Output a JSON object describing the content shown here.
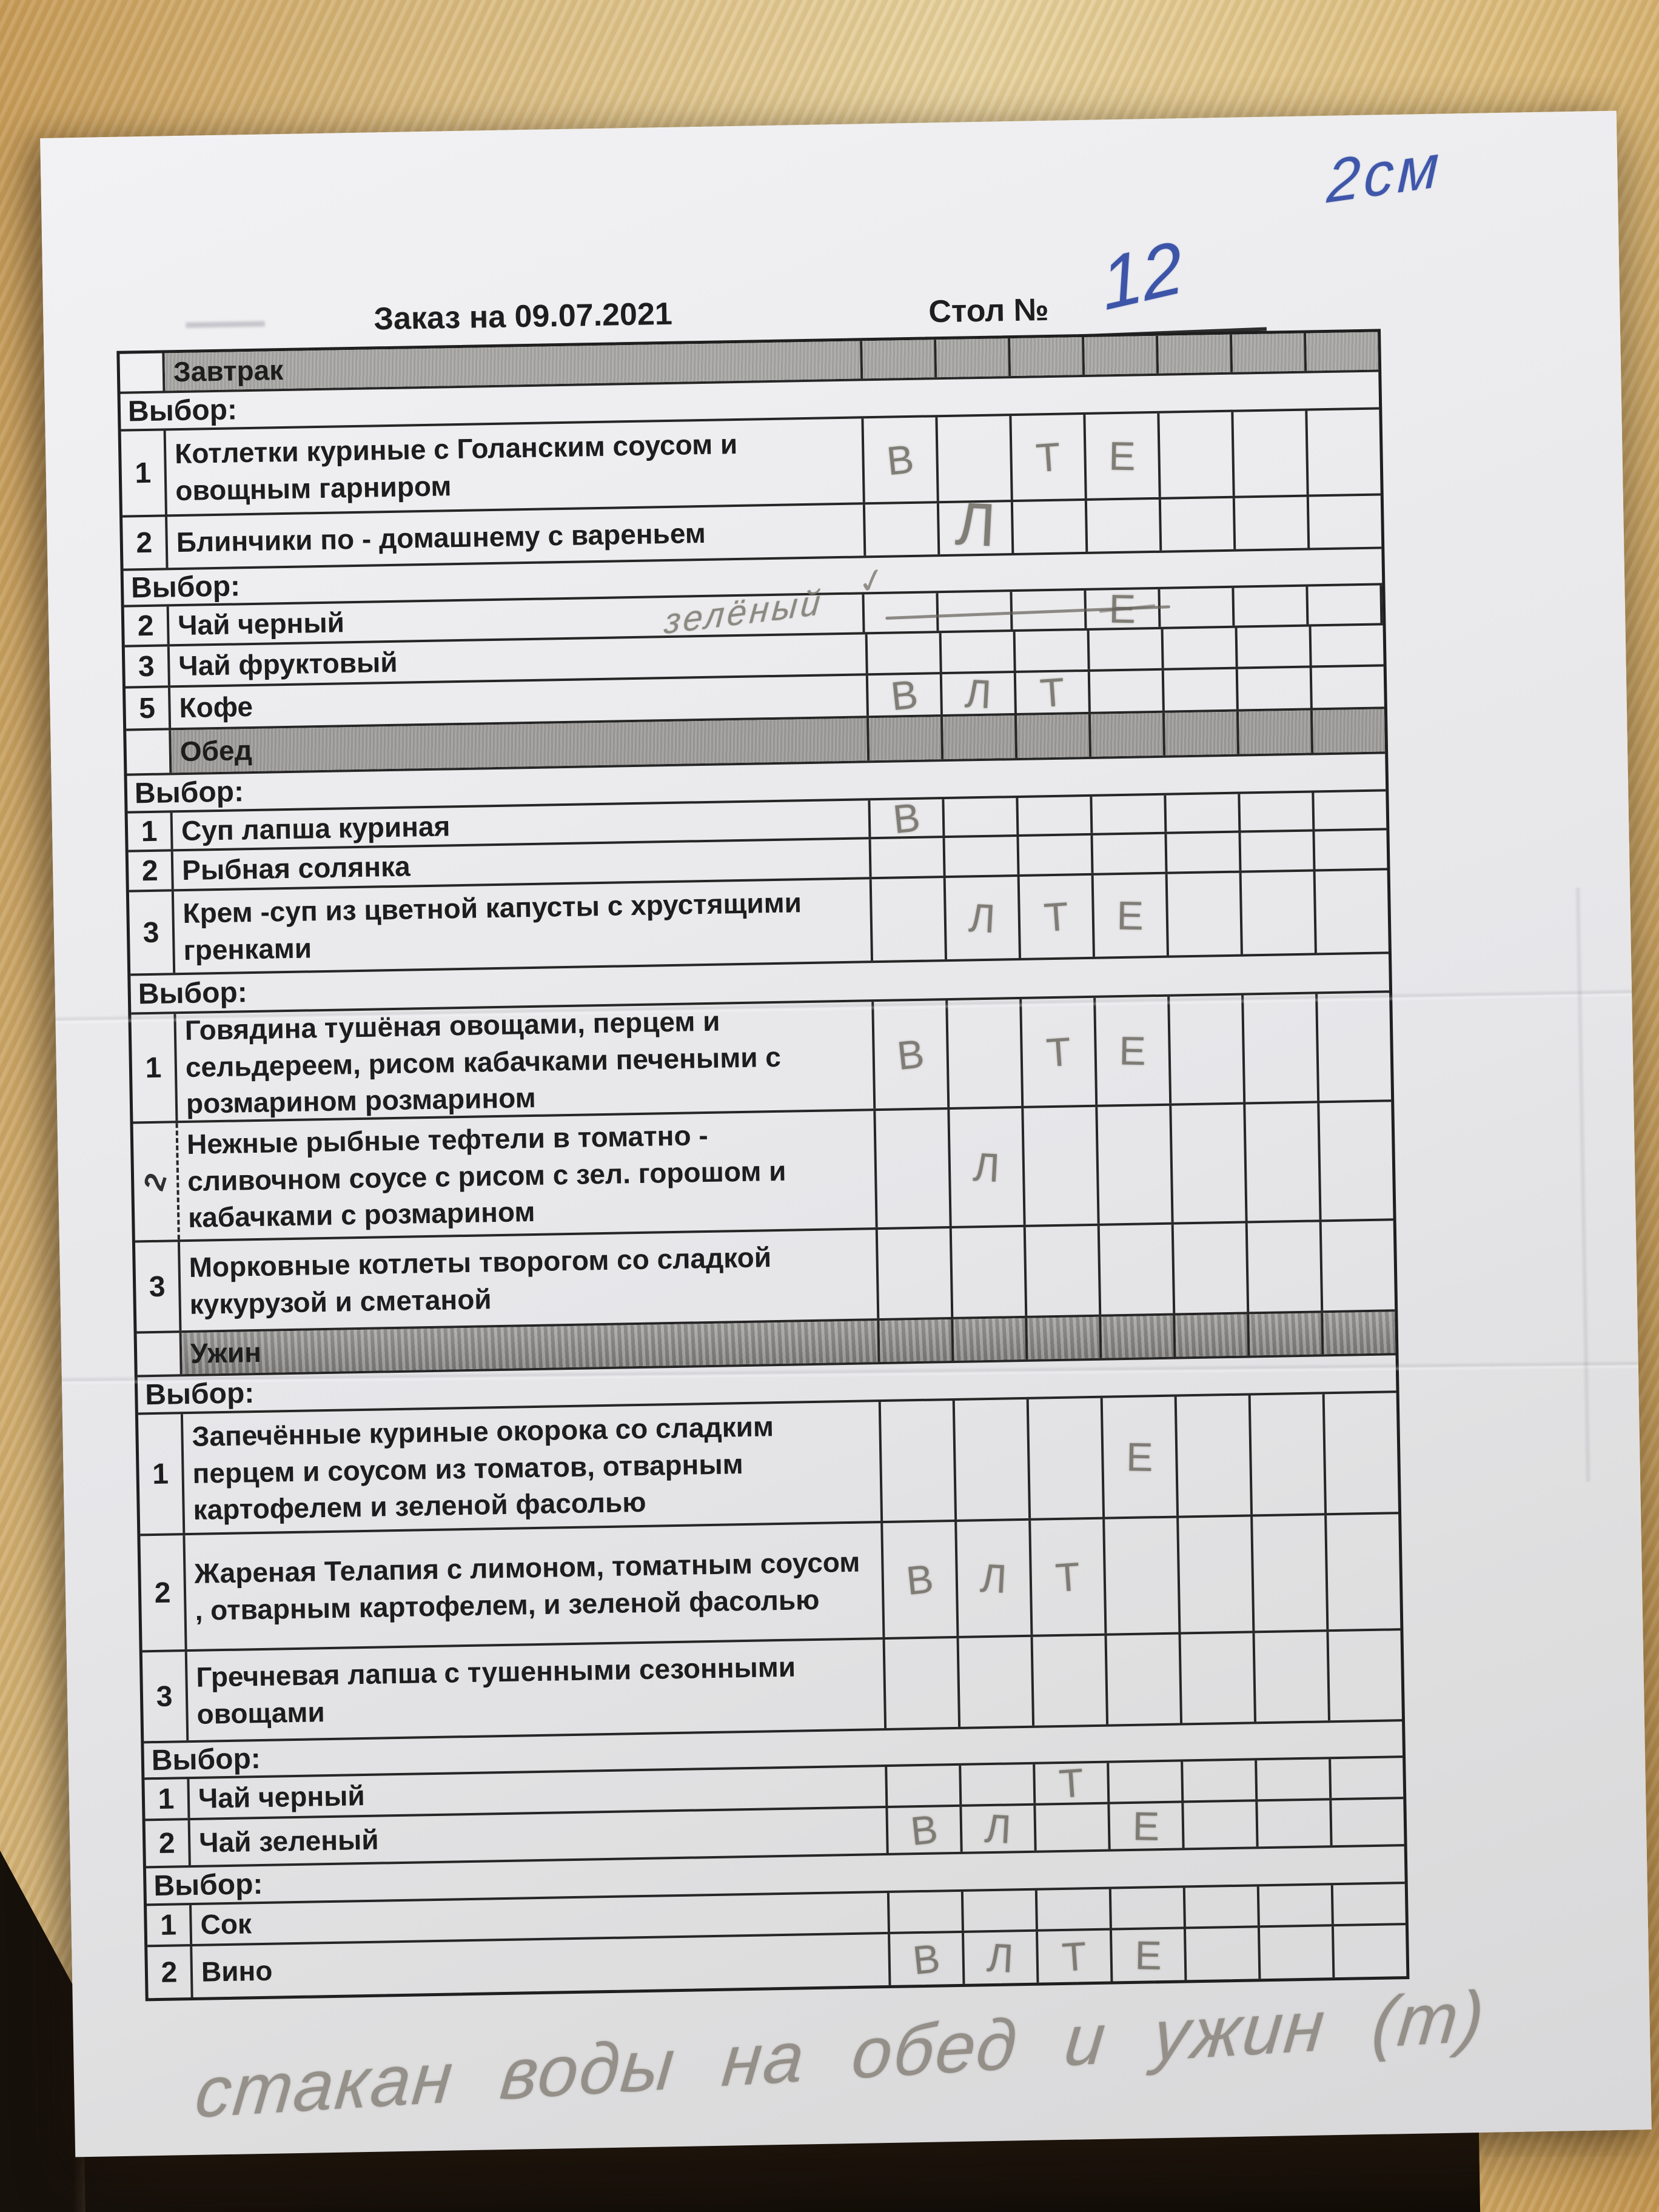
{
  "header": {
    "title": "Заказ на 09.07.2021",
    "table_label": "Стол №",
    "table_number": "12"
  },
  "annotations": {
    "top_right_note": "2см",
    "bottom_note": "стакан воды на обед и ужин (т)",
    "tea_correction": "зелёный",
    "checkmark_glyph": "✓"
  },
  "mark_columns": 7,
  "sections": [
    {
      "title": "Завтрак",
      "groups": [
        {
          "label": "Выбор:",
          "items": [
            {
              "num": "1",
              "text": "Котлетки куриные с Голанским соусом и овощным гарниром",
              "marks": [
                {
                  "col": 1,
                  "letter": "В"
                },
                {
                  "col": 3,
                  "letter": "Т"
                },
                {
                  "col": 4,
                  "letter": "Е"
                }
              ]
            },
            {
              "num": "2",
              "text": "Блинчики по - домашнему с вареньем",
              "marks": [
                {
                  "col": 2,
                  "letter": "Л",
                  "large": true
                }
              ]
            }
          ]
        },
        {
          "label": "Выбор:",
          "items": [
            {
              "num": "2",
              "text": "Чай  черный",
              "corrected_to": "зелёный",
              "struck": true,
              "marks": [
                {
                  "col": 4,
                  "letter": "Е",
                  "crossed": true
                }
              ]
            },
            {
              "num": "3",
              "text": "Чай фруктовый",
              "marks": []
            },
            {
              "num": "5",
              "text": "Кофе",
              "marks": [
                {
                  "col": 1,
                  "letter": "В"
                },
                {
                  "col": 2,
                  "letter": "Л"
                },
                {
                  "col": 3,
                  "letter": "Т"
                }
              ]
            }
          ]
        }
      ]
    },
    {
      "title": "Обед",
      "groups": [
        {
          "label": "Выбор:",
          "items": [
            {
              "num": "1",
              "text": "Суп лапша куриная",
              "marks": [
                {
                  "col": 1,
                  "letter": "В"
                }
              ]
            },
            {
              "num": "2",
              "text": "Рыбная солянка",
              "marks": []
            },
            {
              "num": "3",
              "text": "Крем -суп из цветной капусты с хрустящими гренками",
              "marks": [
                {
                  "col": 2,
                  "letter": "Л"
                },
                {
                  "col": 3,
                  "letter": "Т"
                },
                {
                  "col": 4,
                  "letter": "Е"
                }
              ]
            }
          ]
        },
        {
          "label": "Выбор:",
          "items": [
            {
              "num": "1",
              "text": "Говядина тушёная овощами, перцем и сельдереем,  рисом кабачками печеными с розмарином розмарином",
              "marks": [
                {
                  "col": 1,
                  "letter": "В"
                },
                {
                  "col": 3,
                  "letter": "Т"
                },
                {
                  "col": 4,
                  "letter": "Е"
                }
              ]
            },
            {
              "num": "2",
              "text": "Нежные рыбные тефтели в томатно - сливочном соусе с рисом с зел. горошом и кабачками с розмарином",
              "marks": [
                {
                  "col": 2,
                  "letter": "Л"
                }
              ]
            },
            {
              "num": "3",
              "text": "Морковные котлеты творогом со сладкой кукурузой и сметаной",
              "marks": []
            }
          ]
        }
      ]
    },
    {
      "title": "Ужин",
      "groups": [
        {
          "label": "Выбор:",
          "items": [
            {
              "num": "1",
              "text": "Запечённые куриные окорока со сладким перцем и соусом из томатов, отварным картофелем и зеленой фасолью",
              "marks": [
                {
                  "col": 4,
                  "letter": "Е"
                }
              ]
            },
            {
              "num": "2",
              "text": "Жареная Телапия с лимоном, томатным соусом , отварным картофелем, и зеленой фасолью",
              "marks": [
                {
                  "col": 1,
                  "letter": "В"
                },
                {
                  "col": 2,
                  "letter": "Л"
                },
                {
                  "col": 3,
                  "letter": "Т"
                }
              ]
            },
            {
              "num": "3",
              "text": "Гречневая лапша с тушенными сезонными овощами",
              "marks": []
            }
          ]
        },
        {
          "label": "Выбор:",
          "items": [
            {
              "num": "1",
              "text": "Чай  черный",
              "marks": [
                {
                  "col": 3,
                  "letter": "Т"
                }
              ]
            },
            {
              "num": "2",
              "text": "Чай  зеленый",
              "marks": [
                {
                  "col": 1,
                  "letter": "В"
                },
                {
                  "col": 2,
                  "letter": "Л"
                },
                {
                  "col": 4,
                  "letter": "Е"
                }
              ]
            }
          ]
        },
        {
          "label": "Выбор:",
          "items": [
            {
              "num": "1",
              "text": "Сок",
              "marks": []
            },
            {
              "num": "2",
              "text": "Вино",
              "marks": [
                {
                  "col": 1,
                  "letter": "В"
                },
                {
                  "col": 2,
                  "letter": "Л"
                },
                {
                  "col": 3,
                  "letter": "Т"
                },
                {
                  "col": 4,
                  "letter": "Е"
                }
              ]
            }
          ]
        }
      ]
    }
  ]
}
